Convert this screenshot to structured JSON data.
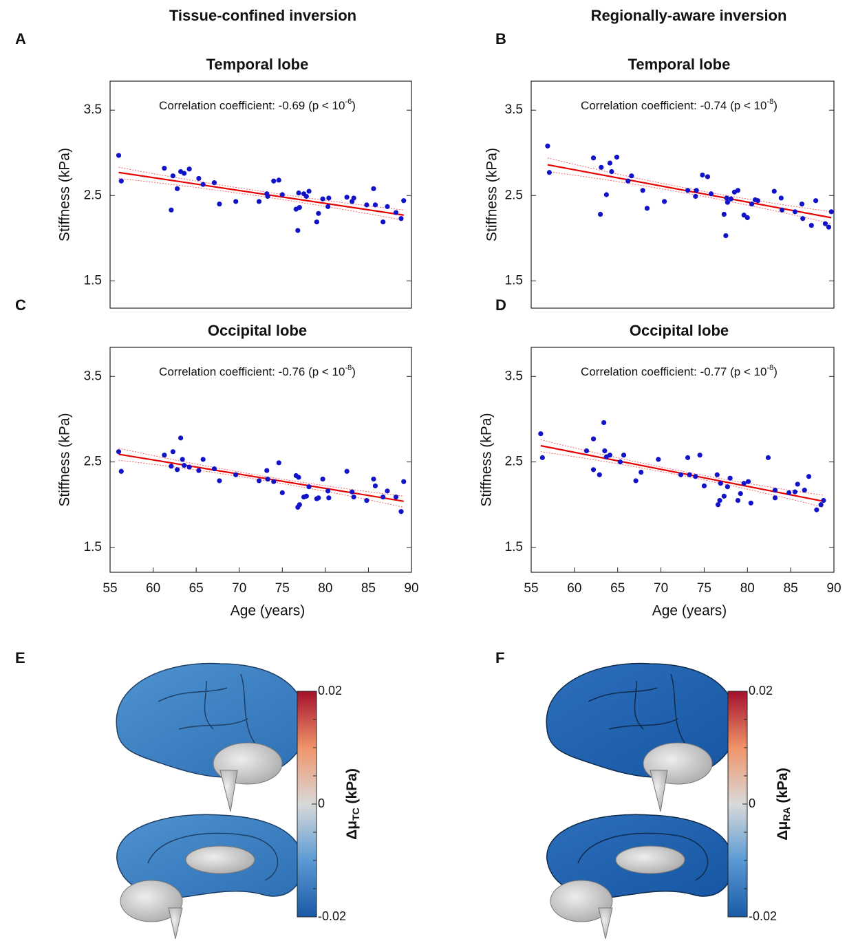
{
  "headers": [
    "Tissue-confined inversion",
    "Regionally-aware inversion"
  ],
  "chart_data": [
    {
      "panel": "A",
      "type": "scatter",
      "title": "Temporal lobe",
      "annotation": "Correlation coefficient: -0.69 (p < 10",
      "annotation_exponent": "-6",
      "annotation_end": ")",
      "ylabel": "Stiffness (kPa)",
      "xlim": [
        55,
        90
      ],
      "ylim": [
        1.18,
        3.84
      ],
      "yticks": [
        1.5,
        2.5,
        3.5
      ],
      "color": "#1212c8",
      "x": [
        56.0,
        56.3,
        61.3,
        62.1,
        62.3,
        62.8,
        63.2,
        63.6,
        64.2,
        65.3,
        65.8,
        67.1,
        67.7,
        69.6,
        72.3,
        73.2,
        73.3,
        74.0,
        74.6,
        75.0,
        76.6,
        76.8,
        76.9,
        77.0,
        77.5,
        77.8,
        78.1,
        79.0,
        79.2,
        79.7,
        80.3,
        80.4,
        82.5,
        83.1,
        83.3,
        84.8,
        85.6,
        85.8,
        86.7,
        87.2,
        88.2,
        88.8,
        89.1
      ],
      "values": [
        2.97,
        2.67,
        2.82,
        2.33,
        2.73,
        2.58,
        2.78,
        2.76,
        2.81,
        2.7,
        2.63,
        2.65,
        2.4,
        2.43,
        2.43,
        2.52,
        2.49,
        2.67,
        2.68,
        2.51,
        2.34,
        2.09,
        2.53,
        2.36,
        2.52,
        2.49,
        2.55,
        2.19,
        2.29,
        2.46,
        2.37,
        2.47,
        2.48,
        2.43,
        2.47,
        2.39,
        2.58,
        2.39,
        2.19,
        2.37,
        2.3,
        2.23,
        2.44
      ],
      "fit": {
        "color": "#e60000",
        "x": [
          56.0,
          89.1
        ],
        "values": [
          2.77,
          2.27
        ]
      },
      "ci_upper": {
        "color": "#f06464",
        "x": [
          56.0,
          72.5,
          89.1
        ],
        "values": [
          2.83,
          2.55,
          2.33
        ]
      },
      "ci_lower": {
        "color": "#f06464",
        "x": [
          56.0,
          72.5,
          89.1
        ],
        "values": [
          2.7,
          2.49,
          2.21
        ]
      }
    },
    {
      "panel": "B",
      "type": "scatter",
      "title": "Temporal lobe",
      "annotation": "Correlation coefficient: -0.74 (p < 10",
      "annotation_exponent": "-8",
      "annotation_end": ")",
      "ylabel": "Stiffness (kPa)",
      "xlim": [
        55,
        90
      ],
      "ylim": [
        1.18,
        3.84
      ],
      "yticks": [
        1.5,
        2.5,
        3.5
      ],
      "color": "#1212c8",
      "x": [
        56.9,
        57.1,
        62.2,
        63.0,
        63.1,
        63.7,
        64.1,
        64.3,
        64.9,
        66.2,
        66.6,
        67.9,
        68.4,
        70.4,
        73.1,
        74.0,
        74.1,
        74.8,
        75.4,
        75.8,
        77.3,
        77.5,
        77.6,
        77.7,
        78.1,
        78.5,
        78.9,
        79.6,
        80.0,
        80.5,
        80.9,
        81.2,
        83.1,
        83.9,
        84.0,
        85.5,
        86.3,
        86.4,
        87.4,
        87.9,
        89.0,
        89.4,
        89.7
      ],
      "values": [
        3.08,
        2.77,
        2.94,
        2.28,
        2.83,
        2.51,
        2.88,
        2.78,
        2.95,
        2.67,
        2.73,
        2.56,
        2.35,
        2.43,
        2.56,
        2.49,
        2.56,
        2.74,
        2.72,
        2.52,
        2.28,
        2.03,
        2.47,
        2.42,
        2.46,
        2.54,
        2.56,
        2.27,
        2.24,
        2.4,
        2.45,
        2.44,
        2.55,
        2.47,
        2.33,
        2.31,
        2.4,
        2.23,
        2.15,
        2.44,
        2.17,
        2.13,
        2.31
      ],
      "fit": {
        "color": "#e60000",
        "x": [
          56.9,
          89.7
        ],
        "values": [
          2.86,
          2.24
        ]
      },
      "ci_upper": {
        "color": "#f06464",
        "x": [
          56.9,
          73.3,
          89.7
        ],
        "values": [
          2.94,
          2.58,
          2.31
        ]
      },
      "ci_lower": {
        "color": "#f06464",
        "x": [
          56.9,
          73.3,
          89.7
        ],
        "values": [
          2.78,
          2.52,
          2.17
        ]
      }
    },
    {
      "panel": "C",
      "type": "scatter",
      "title": "Occipital lobe",
      "annotation": "Correlation coefficient: -0.76 (p < 10",
      "annotation_exponent": "-8",
      "annotation_end": ")",
      "ylabel": "Stiffness (kPa)",
      "xlabel": "Age (years)",
      "xlim": [
        55,
        90
      ],
      "ylim": [
        1.21,
        3.84
      ],
      "yticks": [
        1.5,
        2.5,
        3.5
      ],
      "xticks": [
        55,
        60,
        65,
        70,
        75,
        80,
        85,
        90
      ],
      "color": "#1212c8",
      "x": [
        56.0,
        56.3,
        61.3,
        62.1,
        62.3,
        62.8,
        63.2,
        63.4,
        63.6,
        64.2,
        65.3,
        65.8,
        67.1,
        67.7,
        69.6,
        72.3,
        73.2,
        73.3,
        74.0,
        74.6,
        75.0,
        76.6,
        76.8,
        76.9,
        77.0,
        77.5,
        77.8,
        78.1,
        79.0,
        79.2,
        79.7,
        80.3,
        80.4,
        82.5,
        83.1,
        83.3,
        84.8,
        85.6,
        85.8,
        86.7,
        87.2,
        88.2,
        88.8,
        89.1
      ],
      "values": [
        2.62,
        2.39,
        2.58,
        2.45,
        2.62,
        2.41,
        2.78,
        2.53,
        2.46,
        2.44,
        2.4,
        2.53,
        2.42,
        2.28,
        2.35,
        2.28,
        2.4,
        2.3,
        2.27,
        2.49,
        2.14,
        2.34,
        1.97,
        2.32,
        2.0,
        2.09,
        2.1,
        2.21,
        2.07,
        2.08,
        2.3,
        2.16,
        2.08,
        2.39,
        2.15,
        2.09,
        2.05,
        2.3,
        2.22,
        2.09,
        2.16,
        2.09,
        1.92,
        2.27
      ],
      "fit": {
        "color": "#e60000",
        "x": [
          56.0,
          89.1
        ],
        "values": [
          2.59,
          2.04
        ]
      },
      "ci_upper": {
        "color": "#f06464",
        "x": [
          56.0,
          72.5,
          89.1
        ],
        "values": [
          2.66,
          2.34,
          2.1
        ]
      },
      "ci_lower": {
        "color": "#f06464",
        "x": [
          56.0,
          72.5,
          89.1
        ],
        "values": [
          2.52,
          2.29,
          1.97
        ]
      }
    },
    {
      "panel": "D",
      "type": "scatter",
      "title": "Occipital lobe",
      "annotation": "Correlation coefficient: -0.77 (p < 10",
      "annotation_exponent": "-8",
      "annotation_end": ")",
      "ylabel": "Stiffness (kPa)",
      "xlabel": "Age (years)",
      "xlim": [
        55,
        90
      ],
      "ylim": [
        1.21,
        3.84
      ],
      "yticks": [
        1.5,
        2.5,
        3.5
      ],
      "xticks": [
        55,
        60,
        65,
        70,
        75,
        80,
        85,
        90
      ],
      "color": "#1212c8",
      "x": [
        56.1,
        56.3,
        61.4,
        62.2,
        62.2,
        62.9,
        63.4,
        63.5,
        63.7,
        64.1,
        65.3,
        65.7,
        67.1,
        67.7,
        69.7,
        72.3,
        73.1,
        73.3,
        74.0,
        74.5,
        75.0,
        76.5,
        76.6,
        76.8,
        76.9,
        77.3,
        77.7,
        78.0,
        78.9,
        79.2,
        79.6,
        80.1,
        80.4,
        82.4,
        83.2,
        83.2,
        84.8,
        85.5,
        85.8,
        86.6,
        87.1,
        88.0,
        88.5,
        88.8
      ],
      "values": [
        2.83,
        2.55,
        2.63,
        2.77,
        2.41,
        2.35,
        2.96,
        2.63,
        2.56,
        2.58,
        2.5,
        2.58,
        2.28,
        2.38,
        2.53,
        2.35,
        2.55,
        2.35,
        2.33,
        2.58,
        2.22,
        2.35,
        2.0,
        2.05,
        2.25,
        2.1,
        2.21,
        2.31,
        2.05,
        2.13,
        2.25,
        2.27,
        2.02,
        2.55,
        2.08,
        2.17,
        2.14,
        2.15,
        2.24,
        2.17,
        2.33,
        1.94,
        2.0,
        2.05
      ],
      "fit": {
        "color": "#e60000",
        "x": [
          56.1,
          88.8
        ],
        "values": [
          2.69,
          2.04
        ]
      },
      "ci_upper": {
        "color": "#f06464",
        "x": [
          56.1,
          72.5,
          88.8
        ],
        "values": [
          2.76,
          2.39,
          2.11
        ]
      },
      "ci_lower": {
        "color": "#f06464",
        "x": [
          56.1,
          72.5,
          88.8
        ],
        "values": [
          2.62,
          2.34,
          1.97
        ]
      }
    }
  ],
  "colorbars": [
    {
      "panel": "E",
      "label": "Δμ",
      "label_sub": "TC",
      "label_unit": " (kPa)",
      "lim": [
        -0.02,
        0.02
      ],
      "ticks": [
        0.02,
        0,
        -0.02
      ],
      "colors": [
        "#1a5aa6",
        "#5a9ad4",
        "#d9d9d9",
        "#f0946a",
        "#a3102c"
      ]
    },
    {
      "panel": "F",
      "label": "Δμ",
      "label_sub": "RA",
      "label_unit": " (kPa)",
      "lim": [
        -0.02,
        0.02
      ],
      "ticks": [
        0.02,
        0,
        -0.02
      ],
      "colors": [
        "#1a5aa6",
        "#5a9ad4",
        "#d9d9d9",
        "#f0946a",
        "#a3102c"
      ]
    }
  ]
}
